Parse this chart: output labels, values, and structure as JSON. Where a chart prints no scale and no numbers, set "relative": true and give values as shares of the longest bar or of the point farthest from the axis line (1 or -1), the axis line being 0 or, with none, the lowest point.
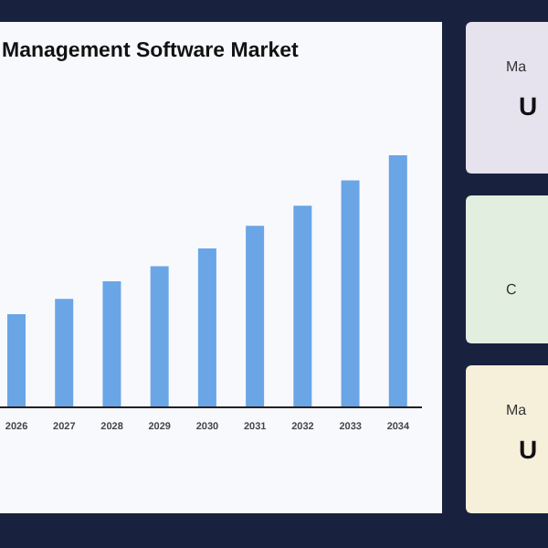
{
  "chart_data": {
    "type": "bar",
    "title": "Management Software Market",
    "relative": true,
    "categories": [
      "2026",
      "2027",
      "2028",
      "2029",
      "2030",
      "2031",
      "2032",
      "2033",
      "2034"
    ],
    "values": [
      0.37,
      0.43,
      0.5,
      0.56,
      0.63,
      0.72,
      0.8,
      0.9,
      1
    ],
    "color": "#6aa5e6",
    "grid": false,
    "annotations": [
      "Ma",
      "U",
      "C",
      "Ma",
      "U"
    ]
  }
}
